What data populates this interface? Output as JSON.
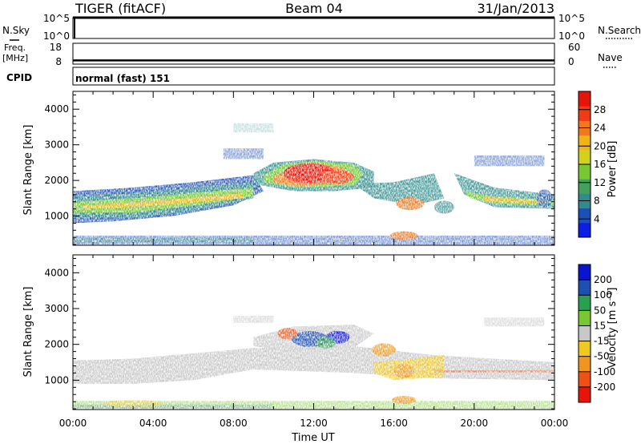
{
  "header": {
    "radar": "TIGER (fitACF)",
    "beam": "Beam 04",
    "date": "31/Jan/2013"
  },
  "strips": {
    "nsky": {
      "label": "N.Sky",
      "ticks": [
        "10^5",
        "10^0"
      ],
      "right_label": "N.Search",
      "right_ticks": [
        "10^5",
        "10^0"
      ],
      "level": 1.0
    },
    "freq": {
      "label_top": "Freq.",
      "label_bottom": "[MHz]",
      "ticks": [
        "18",
        "8"
      ],
      "right_label": "Nave",
      "right_ticks": [
        "60",
        "0"
      ],
      "value": 9.8,
      "range": [
        8,
        18
      ]
    },
    "cpid": {
      "label": "CPID",
      "text": "normal (fast) 151"
    }
  },
  "chart_data": [
    {
      "type": "heatmap",
      "quantity": "power",
      "ylabel": "Slant Range [km]",
      "ylim": [
        180,
        4500
      ],
      "y_ticks": [
        "1000",
        "2000",
        "3000",
        "4000"
      ],
      "xlim_hours": [
        0,
        24
      ],
      "colorbar": {
        "label": "Power [dB]",
        "ticks": [
          "4",
          "8",
          "12",
          "16",
          "20",
          "24",
          "28"
        ],
        "range": [
          0,
          32
        ],
        "colors": [
          "#0a1ee6",
          "#1e4fb4",
          "#2e8c8c",
          "#44a05a",
          "#78c832",
          "#d2d21e",
          "#f0b414",
          "#f0781e",
          "#f03c14",
          "#e6140a"
        ]
      },
      "features": [
        {
          "name": "main-band",
          "start_h": 0,
          "end_h": 9.5,
          "range_start_km": 950,
          "range_end_km": 1700,
          "power_db": 17
        },
        {
          "name": "strong-patch",
          "start_h": 10,
          "end_h": 14,
          "range_start_km": 1700,
          "range_end_km": 2500,
          "power_db": 28
        },
        {
          "name": "evening-band",
          "start_h": 19,
          "end_h": 24,
          "range_start_km": 1100,
          "range_end_km": 1600,
          "power_db": 14
        }
      ]
    },
    {
      "type": "heatmap",
      "quantity": "velocity",
      "ylabel": "Slant Range [km]",
      "ylim": [
        180,
        4500
      ],
      "y_ticks": [
        "1000",
        "2000",
        "3000",
        "4000"
      ],
      "xlim_hours": [
        0,
        24
      ],
      "colorbar": {
        "label": "Velocity [m s⁻¹]",
        "ticks": [
          "200",
          "100",
          "50",
          "15",
          "-15",
          "-50",
          "-100",
          "-200"
        ],
        "range": [
          -250,
          250
        ],
        "colors": [
          "#e6140a",
          "#f05014",
          "#f0961e",
          "#f0c81e",
          "#c8c8c8",
          "#78c832",
          "#28a050",
          "#1e50b4",
          "#0a14d2"
        ]
      },
      "features": [
        {
          "name": "ground-scatter-band",
          "start_h": 0,
          "end_h": 24,
          "range_start_km": 900,
          "range_end_km": 1600,
          "velocity_ms": 0
        },
        {
          "name": "mixed-patch",
          "start_h": 10,
          "end_h": 14,
          "range_start_km": 1700,
          "range_end_km": 2500,
          "velocity_ms": 100
        }
      ]
    }
  ],
  "time_axis": {
    "ticks": [
      "00:00",
      "04:00",
      "08:00",
      "12:00",
      "16:00",
      "20:00",
      "00:00"
    ],
    "label": "Time UT"
  }
}
